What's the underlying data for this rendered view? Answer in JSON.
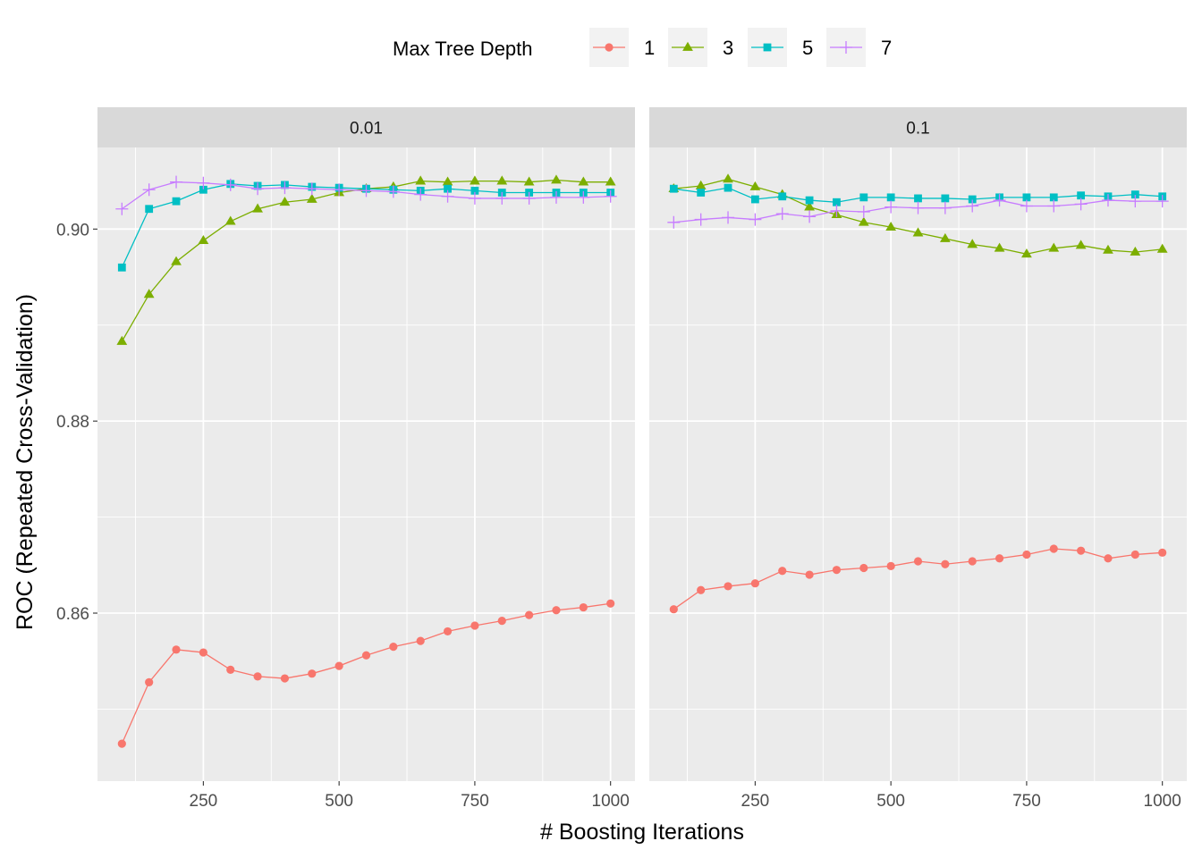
{
  "chart_data": {
    "type": "line",
    "ylabel": "ROC (Repeated Cross-Validation)",
    "xlabel": "# Boosting Iterations",
    "legend": {
      "title": "Max Tree Depth",
      "placement": "top"
    },
    "ylim": [
      0.8425,
      0.9085
    ],
    "xlim": [
      55,
      1045
    ],
    "y_major_ticks": [
      0.86,
      0.88,
      0.9
    ],
    "y_tick_labels": [
      "0.86",
      "0.88",
      "0.90"
    ],
    "x_major_ticks": [
      250,
      500,
      750,
      1000
    ],
    "x_tick_labels": [
      "250",
      "500",
      "750",
      "1000"
    ],
    "grid": true,
    "x": [
      100,
      150,
      200,
      250,
      300,
      350,
      400,
      450,
      500,
      550,
      600,
      650,
      700,
      750,
      800,
      850,
      900,
      950,
      1000
    ],
    "panels": [
      {
        "label": "0.01",
        "series": [
          {
            "name": "1",
            "color": "#F8766D",
            "marker": "circle",
            "values": [
              0.8464,
              0.8528,
              0.8562,
              0.8559,
              0.8541,
              0.8534,
              0.8532,
              0.8537,
              0.8545,
              0.8556,
              0.8565,
              0.8571,
              0.8581,
              0.8587,
              0.8592,
              0.8598,
              0.8603,
              0.8606,
              0.861
            ]
          },
          {
            "name": "3",
            "color": "#7CAE00",
            "marker": "triangle",
            "values": [
              0.8883,
              0.8932,
              0.8966,
              0.8988,
              0.9008,
              0.9021,
              0.9028,
              0.9031,
              0.9038,
              0.9042,
              0.9044,
              0.905,
              0.9049,
              0.905,
              0.905,
              0.9049,
              0.9051,
              0.9049,
              0.9049
            ]
          },
          {
            "name": "5",
            "color": "#00BFC4",
            "marker": "square",
            "values": [
              0.896,
              0.9021,
              0.9029,
              0.9041,
              0.9047,
              0.9045,
              0.9046,
              0.9044,
              0.9043,
              0.9042,
              0.9041,
              0.904,
              0.9042,
              0.904,
              0.9038,
              0.9038,
              0.9038,
              0.9038,
              0.9038
            ]
          },
          {
            "name": "7",
            "color": "#C77CFF",
            "marker": "plus",
            "values": [
              0.9021,
              0.9041,
              0.9049,
              0.9048,
              0.9046,
              0.9042,
              0.9043,
              0.9042,
              0.9041,
              0.904,
              0.9039,
              0.9036,
              0.9034,
              0.9032,
              0.9032,
              0.9032,
              0.9033,
              0.9033,
              0.9034
            ]
          }
        ]
      },
      {
        "label": "0.1",
        "series": [
          {
            "name": "1",
            "color": "#F8766D",
            "marker": "circle",
            "values": [
              0.8604,
              0.8624,
              0.8628,
              0.8631,
              0.8644,
              0.864,
              0.8645,
              0.8647,
              0.8649,
              0.8654,
              0.8651,
              0.8654,
              0.8657,
              0.8661,
              0.8667,
              0.8665,
              0.8657,
              0.8661,
              0.8663
            ]
          },
          {
            "name": "3",
            "color": "#7CAE00",
            "marker": "triangle",
            "values": [
              0.9042,
              0.9045,
              0.9052,
              0.9044,
              0.9036,
              0.9023,
              0.9015,
              0.9007,
              0.9002,
              0.8996,
              0.899,
              0.8984,
              0.898,
              0.8974,
              0.898,
              0.8983,
              0.8978,
              0.8976,
              0.8979
            ]
          },
          {
            "name": "5",
            "color": "#00BFC4",
            "marker": "square",
            "values": [
              0.9042,
              0.9038,
              0.9043,
              0.9031,
              0.9034,
              0.903,
              0.9028,
              0.9033,
              0.9033,
              0.9032,
              0.9032,
              0.9031,
              0.9033,
              0.9033,
              0.9033,
              0.9035,
              0.9034,
              0.9036,
              0.9034
            ]
          },
          {
            "name": "7",
            "color": "#C77CFF",
            "marker": "plus",
            "values": [
              0.9007,
              0.901,
              0.9012,
              0.901,
              0.9016,
              0.9013,
              0.9019,
              0.9018,
              0.9023,
              0.9022,
              0.9022,
              0.9024,
              0.903,
              0.9024,
              0.9024,
              0.9026,
              0.903,
              0.9029,
              0.9029
            ]
          }
        ]
      }
    ]
  }
}
